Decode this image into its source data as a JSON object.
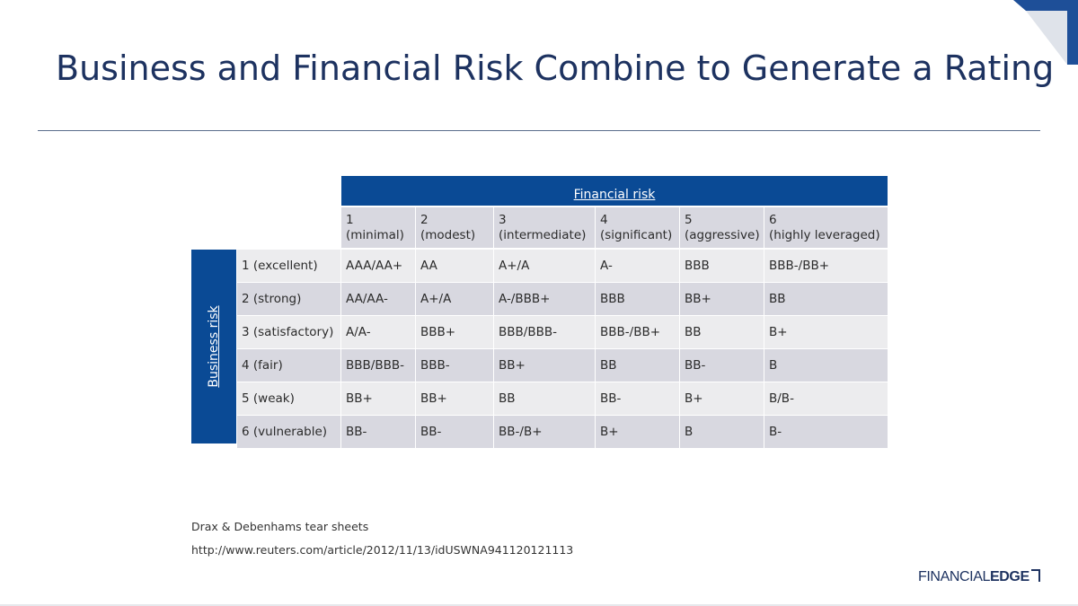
{
  "slide": {
    "title": "Business and Financial Risk Combine to Generate a Rating"
  },
  "matrix": {
    "financial_risk_label": "Financial risk",
    "business_risk_label": "Business risk",
    "columns": [
      {
        "num": "1",
        "desc": "(minimal)"
      },
      {
        "num": "2",
        "desc": "(modest)"
      },
      {
        "num": "3",
        "desc": "(intermediate)"
      },
      {
        "num": "4",
        "desc": "(significant)"
      },
      {
        "num": "5",
        "desc": "(aggressive)"
      },
      {
        "num": "6",
        "desc": "(highly leveraged)"
      }
    ],
    "rows": [
      {
        "label": "1 (excellent)",
        "values": [
          "AAA/AA+",
          "AA",
          "A+/A",
          "A-",
          "BBB",
          "BBB-/BB+"
        ]
      },
      {
        "label": "2 (strong)",
        "values": [
          "AA/AA-",
          "A+/A",
          "A-/BBB+",
          "BBB",
          "BB+",
          "BB"
        ]
      },
      {
        "label": "3 (satisfactory)",
        "values": [
          "A/A-",
          "BBB+",
          "BBB/BBB-",
          "BBB-/BB+",
          "BB",
          "B+"
        ]
      },
      {
        "label": "4 (fair)",
        "values": [
          "BBB/BBB-",
          "BBB-",
          "BB+",
          "BB",
          "BB-",
          "B"
        ]
      },
      {
        "label": "5 (weak)",
        "values": [
          "BB+",
          "BB+",
          "BB",
          "BB-",
          "B+",
          "B/B-"
        ]
      },
      {
        "label": "6 (vulnerable)",
        "values": [
          "BB-",
          "BB-",
          "BB-/B+",
          "B+",
          "B",
          "B-"
        ]
      }
    ]
  },
  "footer": {
    "source_note": "Drax & Debenhams tear sheets",
    "source_url": "http://www.reuters.com/article/2012/11/13/idUSWNA941120121113"
  },
  "brand": {
    "logo_light": "FINANCIAL",
    "logo_bold": "EDGE"
  },
  "colors": {
    "accent_blue": "#0a4a95",
    "title_navy": "#1d3260",
    "cell_light": "#ececee",
    "cell_dark": "#d8d8e0",
    "corner_accent": "#1e4f98"
  }
}
